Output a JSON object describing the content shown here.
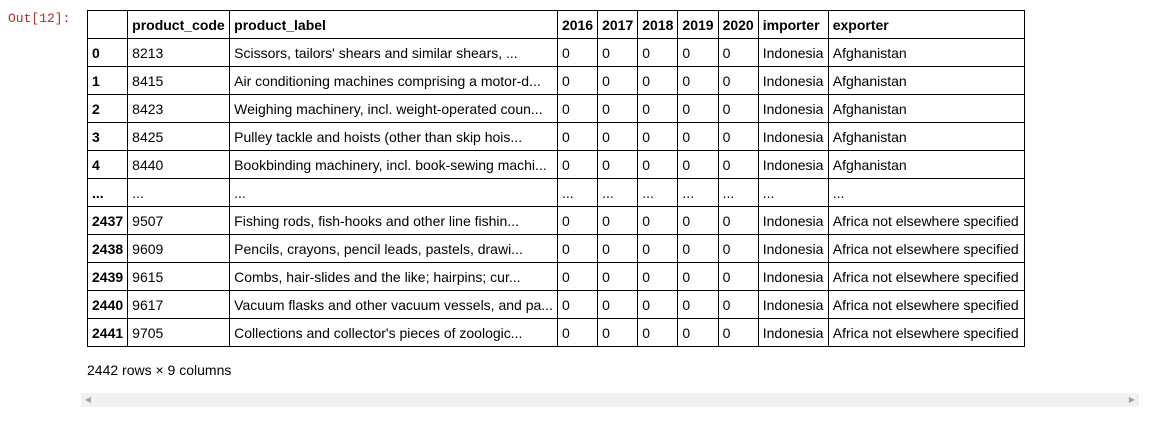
{
  "cell": {
    "prompt": "Out[12]:"
  },
  "dataframe": {
    "columns": [
      "",
      "product_code",
      "product_label",
      "2016",
      "2017",
      "2018",
      "2019",
      "2020",
      "importer",
      "exporter"
    ],
    "rows": [
      [
        "0",
        "8213",
        "Scissors, tailors' shears and similar shears, ...",
        "0",
        "0",
        "0",
        "0",
        "0",
        "Indonesia",
        "Afghanistan"
      ],
      [
        "1",
        "8415",
        "Air conditioning machines comprising a motor-d...",
        "0",
        "0",
        "0",
        "0",
        "0",
        "Indonesia",
        "Afghanistan"
      ],
      [
        "2",
        "8423",
        "Weighing machinery, incl. weight-operated coun...",
        "0",
        "0",
        "0",
        "0",
        "0",
        "Indonesia",
        "Afghanistan"
      ],
      [
        "3",
        "8425",
        "Pulley tackle and hoists (other than skip hois...",
        "0",
        "0",
        "0",
        "0",
        "0",
        "Indonesia",
        "Afghanistan"
      ],
      [
        "4",
        "8440",
        "Bookbinding machinery, incl. book-sewing machi...",
        "0",
        "0",
        "0",
        "0",
        "0",
        "Indonesia",
        "Afghanistan"
      ],
      [
        "...",
        "...",
        "...",
        "...",
        "...",
        "...",
        "...",
        "...",
        "...",
        "..."
      ],
      [
        "2437",
        "9507",
        "Fishing rods, fish-hooks and other line fishin...",
        "0",
        "0",
        "0",
        "0",
        "0",
        "Indonesia",
        "Africa not elsewhere specified"
      ],
      [
        "2438",
        "9609",
        "Pencils, crayons, pencil leads, pastels, drawi...",
        "0",
        "0",
        "0",
        "0",
        "0",
        "Indonesia",
        "Africa not elsewhere specified"
      ],
      [
        "2439",
        "9615",
        "Combs, hair-slides and the like; hairpins; cur...",
        "0",
        "0",
        "0",
        "0",
        "0",
        "Indonesia",
        "Africa not elsewhere specified"
      ],
      [
        "2440",
        "9617",
        "Vacuum flasks and other vacuum vessels, and pa...",
        "0",
        "0",
        "0",
        "0",
        "0",
        "Indonesia",
        "Africa not elsewhere specified"
      ],
      [
        "2441",
        "9705",
        "Collections and collector's pieces of zoologic...",
        "0",
        "0",
        "0",
        "0",
        "0",
        "Indonesia",
        "Africa not elsewhere specified"
      ]
    ],
    "shape_text": "2442 rows × 9 columns"
  },
  "icons": {
    "scroll_left": "scroll-left-arrow-icon",
    "scroll_right": "scroll-right-arrow-icon"
  },
  "colors": {
    "prompt": "#b22d2d",
    "border": "#000000",
    "scrollbar_track": "#f1f1f1"
  }
}
